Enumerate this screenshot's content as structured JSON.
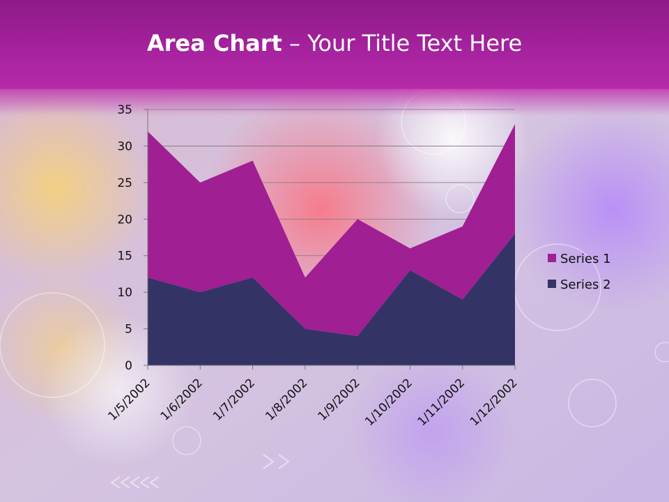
{
  "slide": {
    "title_bold": "Area Chart",
    "title_rest": " – Your Title Text Here"
  },
  "colors": {
    "series_1": "#a01f93",
    "series_2": "#333366",
    "header": "#a6229e"
  },
  "chart_data": {
    "type": "area",
    "stacked": true,
    "categories": [
      "1/5/2002",
      "1/6/2002",
      "1/7/2002",
      "1/8/2002",
      "1/9/2002",
      "1/10/2002",
      "1/11/2002",
      "1/12/2002"
    ],
    "series": [
      {
        "name": "Series 1",
        "values": [
          20,
          15,
          16,
          7,
          16,
          3,
          10,
          15
        ]
      },
      {
        "name": "Series 2",
        "values": [
          12,
          10,
          12,
          5,
          4,
          13,
          9,
          18
        ]
      }
    ],
    "ylim": [
      0,
      35
    ],
    "yticks": [
      0,
      5,
      10,
      15,
      20,
      25,
      30,
      35
    ],
    "grid": true,
    "legend": "right"
  }
}
